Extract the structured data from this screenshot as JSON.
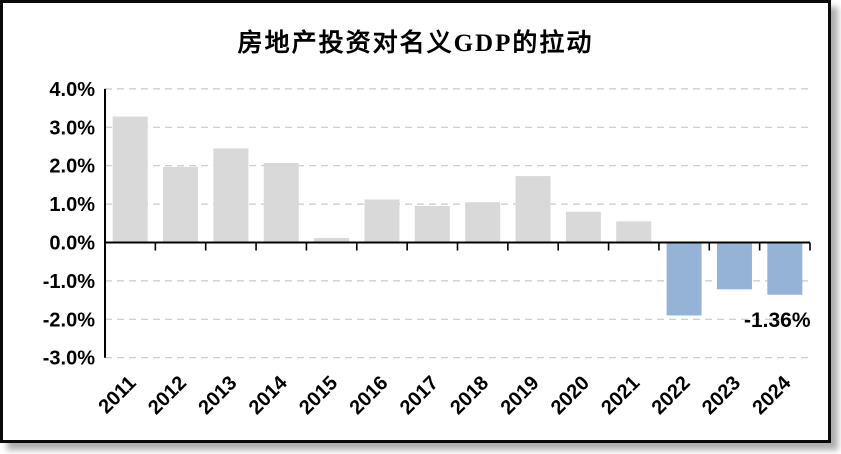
{
  "chart_data": {
    "type": "bar",
    "title": "房地产投资对名义GDP的拉动",
    "categories": [
      "2011",
      "2012",
      "2013",
      "2014",
      "2015",
      "2016",
      "2017",
      "2018",
      "2019",
      "2020",
      "2021",
      "2022",
      "2023",
      "2024"
    ],
    "values": [
      3.28,
      1.97,
      2.45,
      2.07,
      0.12,
      1.12,
      0.95,
      1.05,
      1.73,
      0.8,
      0.55,
      -1.9,
      -1.22,
      -1.36
    ],
    "unit": "%",
    "yticks": [
      4,
      3,
      2,
      1,
      0,
      -1,
      -2,
      -3
    ],
    "ytick_labels": [
      "4.0%",
      "3.0%",
      "2.0%",
      "1.0%",
      "0.0%",
      "-1.0%",
      "-2.0%",
      "-3.0%"
    ],
    "ylim": [
      -3,
      4
    ],
    "grid": "horizontal-dashed",
    "legend": "none",
    "annotation": {
      "text": "-1.36%",
      "target_year": "2024"
    },
    "colors": {
      "positive_bar": "#d9d9d9",
      "negative_bar": "#95b3d7",
      "axis": "#000000",
      "gridline": "#c8c8c8",
      "text": "#000000"
    }
  }
}
